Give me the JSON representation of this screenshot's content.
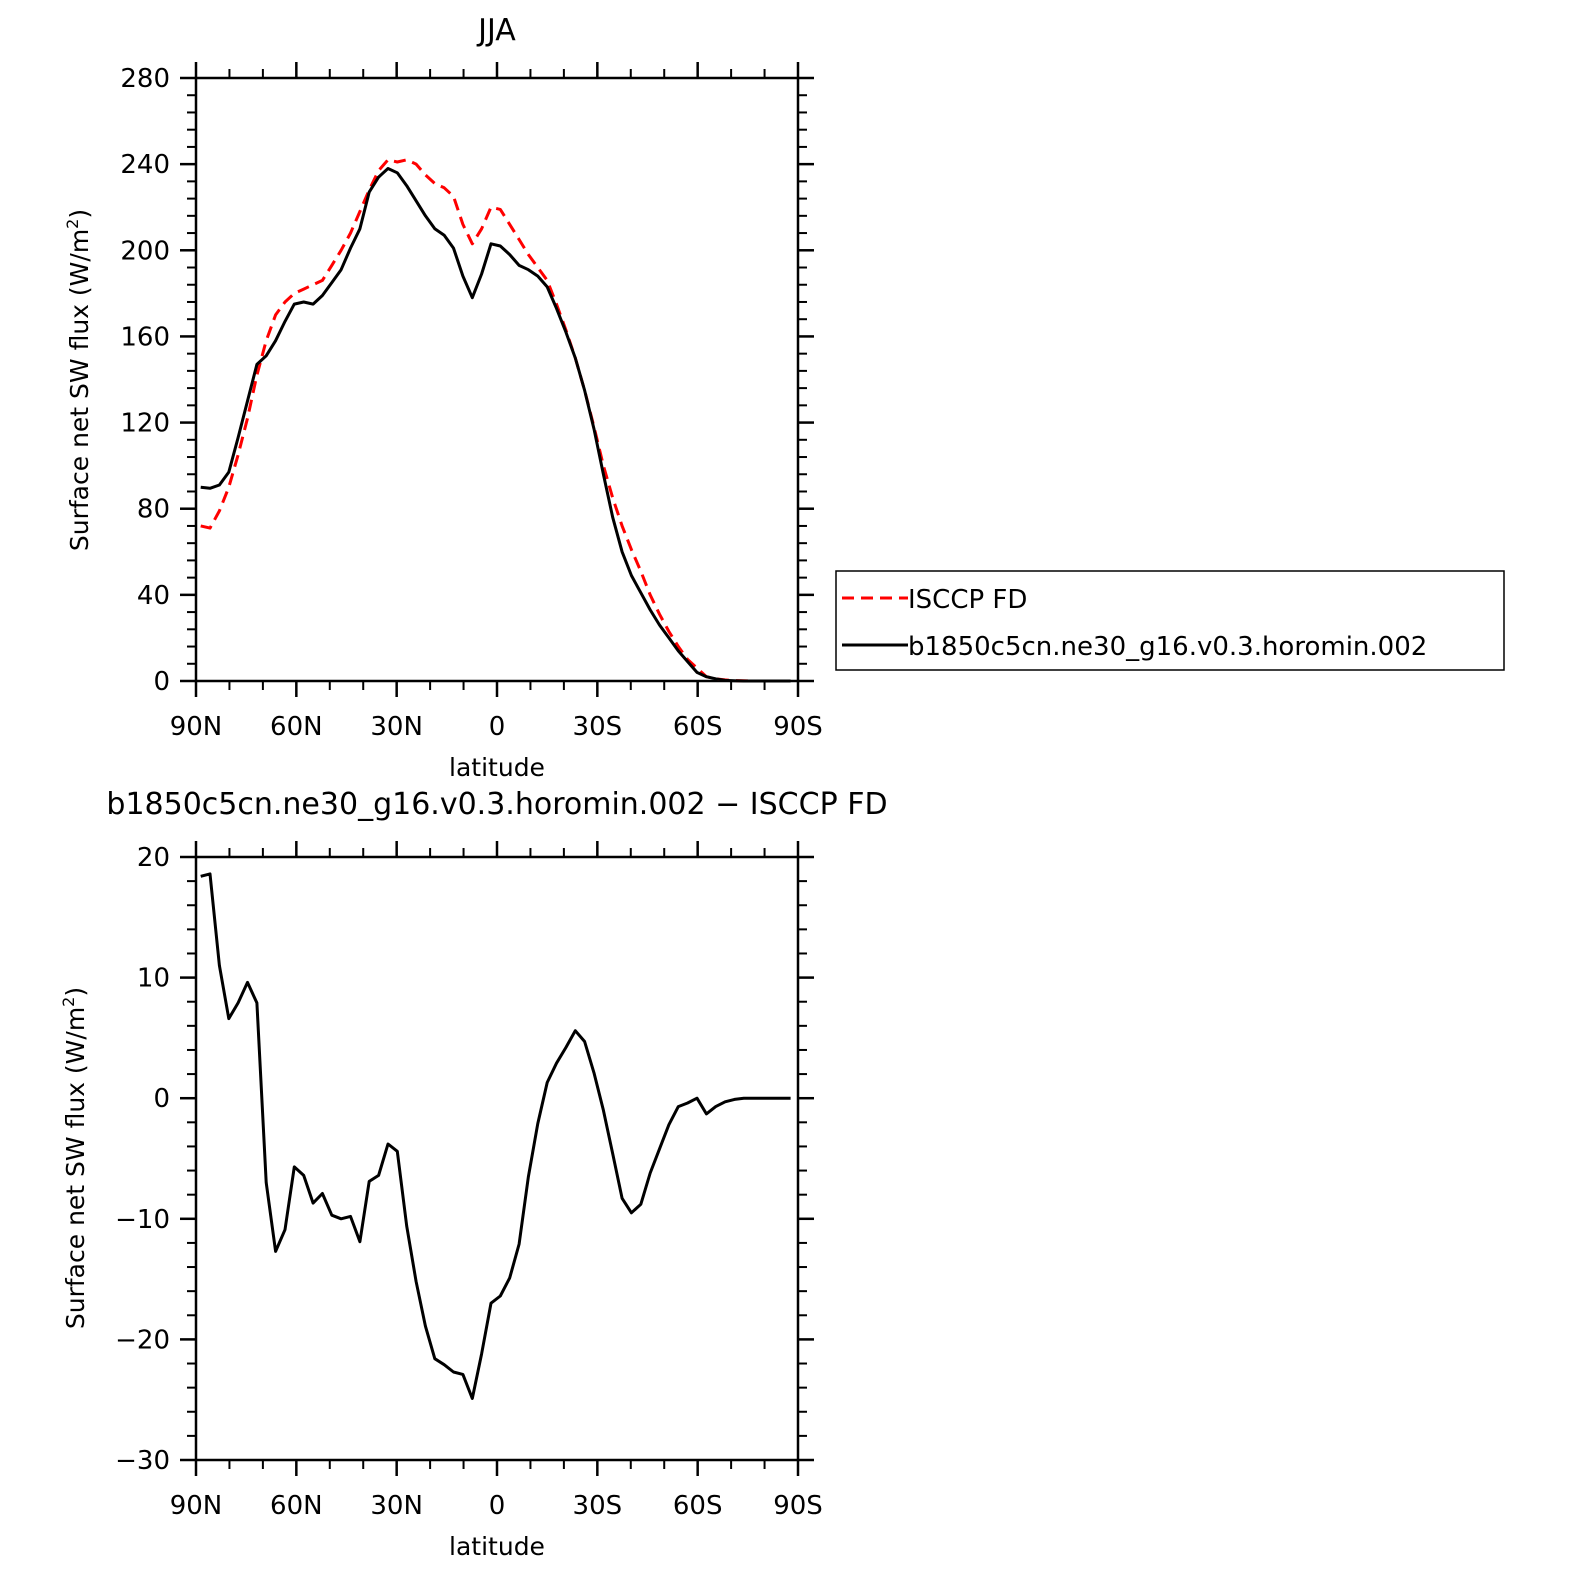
{
  "chart_data": [
    {
      "type": "line",
      "title": "JJA",
      "xlabel": "latitude",
      "ylabel": "Surface net SW flux (W/m",
      "ylabel_sup": "2",
      "ylabel_close": ")",
      "xlim": [
        90,
        -90
      ],
      "ylim": [
        0,
        280
      ],
      "xticks": [
        {
          "v": 90,
          "label": "90N"
        },
        {
          "v": 60,
          "label": "60N"
        },
        {
          "v": 30,
          "label": "30N"
        },
        {
          "v": 0,
          "label": "0"
        },
        {
          "v": -30,
          "label": "30S"
        },
        {
          "v": -60,
          "label": "60S"
        },
        {
          "v": -90,
          "label": "90S"
        }
      ],
      "yticks": [
        {
          "v": 0,
          "label": "0"
        },
        {
          "v": 40,
          "label": "40"
        },
        {
          "v": 80,
          "label": "80"
        },
        {
          "v": 120,
          "label": "120"
        },
        {
          "v": 160,
          "label": "160"
        },
        {
          "v": 200,
          "label": "200"
        },
        {
          "v": 240,
          "label": "240"
        },
        {
          "v": 280,
          "label": "280"
        }
      ],
      "legend": "right",
      "series": [
        {
          "name": "ISCCP FD",
          "color": "#ff0000",
          "dash": true,
          "x": [
            88.6,
            85.8,
            83,
            80.2,
            77.4,
            74.6,
            71.8,
            69,
            66.2,
            63.4,
            60.6,
            57.8,
            55,
            52.2,
            49.4,
            46.6,
            43.8,
            41,
            38.2,
            35.4,
            32.6,
            29.8,
            27,
            24.2,
            21.4,
            18.6,
            15.8,
            13,
            10.2,
            7.4,
            4.6,
            1.8,
            -1,
            -3.8,
            -6.6,
            -9.4,
            -12.2,
            -15,
            -17.8,
            -20.6,
            -23.4,
            -26.2,
            -29,
            -31.8,
            -34.6,
            -37.4,
            -40.2,
            -43,
            -45.8,
            -48.6,
            -51.4,
            -54.2,
            -57,
            -59.8,
            -62.6,
            -65.4,
            -68.2,
            -71,
            -73.8,
            -76.6,
            -79.4,
            -82.2,
            -85,
            -87.8
          ],
          "y": [
            72,
            71,
            79,
            90,
            105,
            122,
            142,
            158,
            170,
            176,
            180,
            182,
            184,
            186,
            193,
            200,
            208,
            218,
            228,
            237,
            242,
            241,
            242,
            240,
            235,
            231,
            229,
            225,
            212,
            203,
            210,
            220,
            219,
            212,
            205,
            198,
            192,
            186,
            175,
            163,
            150,
            135,
            118,
            100,
            85,
            72,
            61,
            51,
            40,
            31,
            23,
            16,
            10,
            6,
            2,
            1,
            0.5,
            0.2,
            0.1,
            0,
            0,
            0,
            0,
            0
          ]
        },
        {
          "name": "b1850c5cn.ne30_g16.v0.3.horomin.002",
          "color": "#000000",
          "dash": false,
          "x": [
            88.6,
            85.8,
            83,
            80.2,
            77.4,
            74.6,
            71.8,
            69,
            66.2,
            63.4,
            60.6,
            57.8,
            55,
            52.2,
            49.4,
            46.6,
            43.8,
            41,
            38.2,
            35.4,
            32.6,
            29.8,
            27,
            24.2,
            21.4,
            18.6,
            15.8,
            13,
            10.2,
            7.4,
            4.6,
            1.8,
            -1,
            -3.8,
            -6.6,
            -9.4,
            -12.2,
            -15,
            -17.8,
            -20.6,
            -23.4,
            -26.2,
            -29,
            -31.8,
            -34.6,
            -37.4,
            -40.2,
            -43,
            -45.8,
            -48.6,
            -51.4,
            -54.2,
            -57,
            -59.8,
            -62.6,
            -65.4,
            -68.2,
            -71,
            -73.8,
            -76.6,
            -79.4,
            -82.2,
            -85,
            -87.8
          ],
          "y": [
            90,
            89.5,
            91,
            97,
            113,
            130,
            147,
            151,
            158,
            167,
            175,
            176,
            175,
            179,
            185,
            191,
            201,
            210,
            227,
            234,
            238,
            236,
            230,
            223,
            216,
            210,
            207,
            201,
            188,
            178,
            189,
            203,
            202,
            198,
            193,
            191,
            188,
            183,
            173,
            162,
            150,
            135,
            117,
            96,
            76,
            60,
            49,
            41,
            33,
            26,
            20,
            14,
            9,
            4,
            2,
            1,
            0.3,
            0.1,
            0,
            0,
            0,
            0,
            0,
            0
          ]
        }
      ]
    },
    {
      "type": "line",
      "title": "b1850c5cn.ne30_g16.v0.3.horomin.002 − ISCCP FD",
      "xlabel": "latitude",
      "ylabel": "Surface net SW flux (W/m",
      "ylabel_sup": "2",
      "ylabel_close": ")",
      "xlim": [
        90,
        -90
      ],
      "ylim": [
        -30,
        20
      ],
      "xticks": [
        {
          "v": 90,
          "label": "90N"
        },
        {
          "v": 60,
          "label": "60N"
        },
        {
          "v": 30,
          "label": "30N"
        },
        {
          "v": 0,
          "label": "0"
        },
        {
          "v": -30,
          "label": "30S"
        },
        {
          "v": -60,
          "label": "60S"
        },
        {
          "v": -90,
          "label": "90S"
        }
      ],
      "yticks": [
        {
          "v": -30,
          "label": "−30"
        },
        {
          "v": -20,
          "label": "−20"
        },
        {
          "v": -10,
          "label": "−10"
        },
        {
          "v": 0,
          "label": "0"
        },
        {
          "v": 10,
          "label": "10"
        },
        {
          "v": 20,
          "label": "20"
        }
      ],
      "series": [
        {
          "color": "#000000",
          "dash": false,
          "x": [
            88.6,
            85.8,
            83,
            80.2,
            77.4,
            74.6,
            71.8,
            69,
            66.2,
            63.4,
            60.6,
            57.8,
            55,
            52.2,
            49.4,
            46.6,
            43.8,
            41,
            38.2,
            35.4,
            32.6,
            29.8,
            27,
            24.2,
            21.4,
            18.6,
            15.8,
            13,
            10.2,
            7.4,
            4.6,
            1.8,
            -1,
            -3.8,
            -6.6,
            -9.4,
            -12.2,
            -15,
            -17.8,
            -20.6,
            -23.4,
            -26.2,
            -29,
            -31.8,
            -34.6,
            -37.4,
            -40.2,
            -43,
            -45.8,
            -48.6,
            -51.4,
            -54.2,
            -57,
            -59.8,
            -62.6,
            -65.4,
            -68.2,
            -71,
            -73.8,
            -76.6,
            -79.4,
            -82.2,
            -85,
            -87.8
          ],
          "y": [
            18.4,
            18.6,
            11,
            6.6,
            7.9,
            9.6,
            7.9,
            -7,
            -12.7,
            -10.9,
            -5.7,
            -6.4,
            -8.7,
            -7.9,
            -9.7,
            -10,
            -9.8,
            -11.9,
            -6.9,
            -6.4,
            -3.8,
            -4.4,
            -10.6,
            -15.2,
            -18.9,
            -21.6,
            -22.1,
            -22.7,
            -22.9,
            -24.9,
            -21.2,
            -17,
            -16.4,
            -14.9,
            -12.1,
            -6.5,
            -2.1,
            1.3,
            2.9,
            4.2,
            5.6,
            4.7,
            2.1,
            -1,
            -4.6,
            -8.3,
            -9.5,
            -8.8,
            -6.2,
            -4.2,
            -2.2,
            -0.7,
            -0.4,
            0,
            -1.3,
            -0.7,
            -0.3,
            -0.1,
            0,
            0,
            0,
            0,
            0,
            0
          ]
        }
      ]
    }
  ]
}
